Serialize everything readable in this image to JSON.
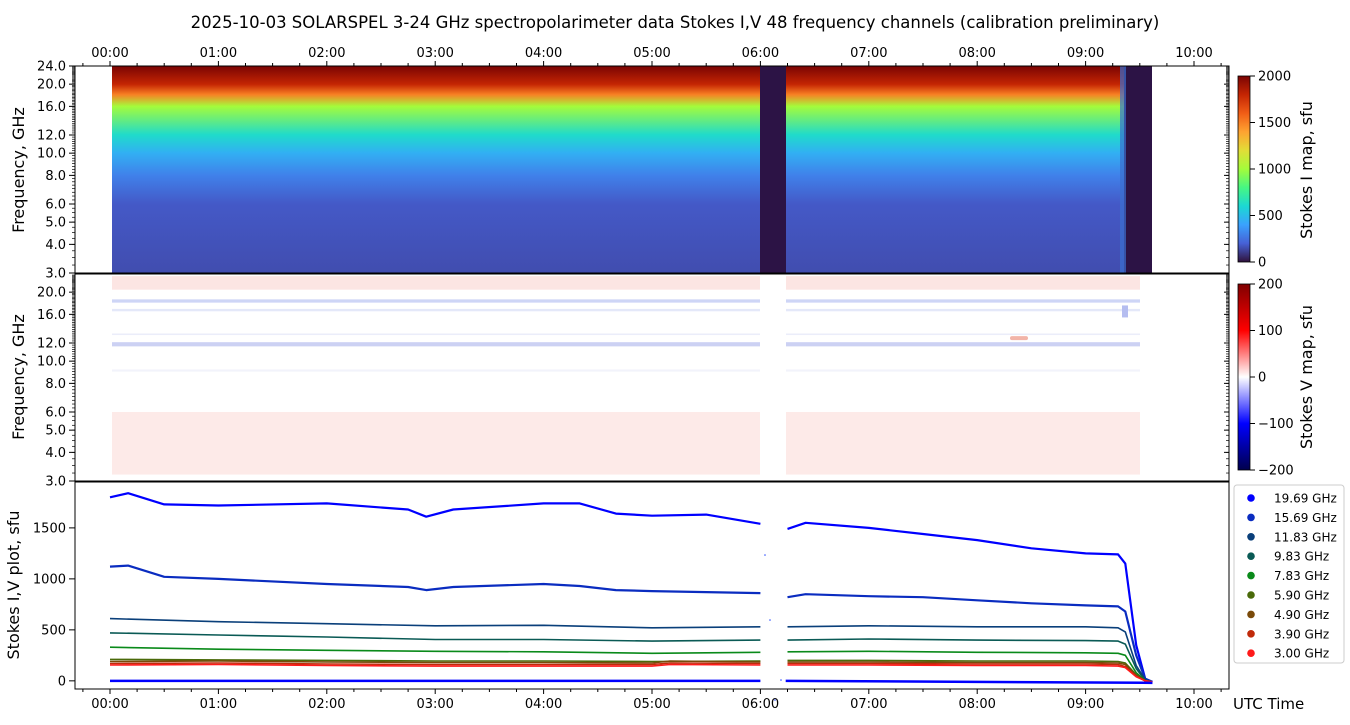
{
  "title": "2025-10-03  SOLARSPEL  3-24 GHz spectropolarimeter data   Stokes I,V   48 frequency channels   (calibration preliminary)",
  "time_ticks": [
    "00:00",
    "01:00",
    "02:00",
    "03:00",
    "04:00",
    "05:00",
    "06:00",
    "07:00",
    "08:00",
    "09:00",
    "10:00"
  ],
  "x_label": "UTC Time",
  "panel_i": {
    "ylabel": "Frequency, GHz",
    "freq_ticks": [
      "3.0",
      "4.0",
      "5.0",
      "6.0",
      "8.0",
      "10.0",
      "12.0",
      "16.0",
      "20.0",
      "24.0"
    ],
    "colorbar_label": "Stokes I map, sfu",
    "colorbar_ticks": [
      "0",
      "500",
      "1000",
      "1500",
      "2000"
    ]
  },
  "panel_v": {
    "ylabel": "Frequency, GHz",
    "freq_ticks": [
      "3.0",
      "4.0",
      "5.0",
      "6.0",
      "8.0",
      "10.0",
      "12.0",
      "16.0",
      "20.0"
    ],
    "colorbar_label": "Stokes V map, sfu",
    "colorbar_ticks": [
      "−200",
      "−100",
      "0",
      "100",
      "200"
    ]
  },
  "panel_plot": {
    "ylabel": "Stokes I,V plot, sfu",
    "y_ticks": [
      "0",
      "500",
      "1000",
      "1500"
    ]
  },
  "legend": [
    {
      "label": "19.69 GHz",
      "color": "#0000ff"
    },
    {
      "label": "15.69 GHz",
      "color": "#0a2cc0"
    },
    {
      "label": "11.83 GHz",
      "color": "#0a3f7a"
    },
    {
      "label": "9.83 GHz",
      "color": "#0a5a55"
    },
    {
      "label": "7.83 GHz",
      "color": "#0a8a1a"
    },
    {
      "label": "5.90 GHz",
      "color": "#4a6a0a"
    },
    {
      "label": "4.90 GHz",
      "color": "#7a4a0a"
    },
    {
      "label": "3.90 GHz",
      "color": "#c02a0a"
    },
    {
      "label": "3.00 GHz",
      "color": "#ff1a1a"
    }
  ],
  "chart_data": [
    {
      "type": "heatmap",
      "name": "Stokes I map",
      "x_range": [
        "00:00",
        "10:00"
      ],
      "data_time_range": [
        "00:00",
        "09:35"
      ],
      "y_range_ghz": [
        3.0,
        24.0
      ],
      "y_scale": "log",
      "z_range": [
        0,
        2000
      ],
      "colormap": "turbo",
      "gaps": [
        [
          "06:00",
          "06:14"
        ],
        [
          "09:20",
          "09:35"
        ]
      ],
      "spectrum_profile_sfu": [
        {
          "freq_ghz": 3.0,
          "value": 150
        },
        {
          "freq_ghz": 6.0,
          "value": 180
        },
        {
          "freq_ghz": 8.0,
          "value": 300
        },
        {
          "freq_ghz": 10.0,
          "value": 450
        },
        {
          "freq_ghz": 12.0,
          "value": 620
        },
        {
          "freq_ghz": 16.0,
          "value": 1000
        },
        {
          "freq_ghz": 18.0,
          "value": 1500
        },
        {
          "freq_ghz": 20.0,
          "value": 1800
        },
        {
          "freq_ghz": 24.0,
          "value": 2000
        }
      ]
    },
    {
      "type": "heatmap",
      "name": "Stokes V map",
      "x_range": [
        "00:00",
        "10:00"
      ],
      "y_range_ghz": [
        3.0,
        24.0
      ],
      "y_scale": "log",
      "z_range": [
        -200,
        200
      ],
      "colormap": "seismic",
      "near_zero": true
    },
    {
      "type": "scatter",
      "name": "Stokes I,V plot",
      "x_range": [
        "00:00",
        "10:00"
      ],
      "ylim": [
        -80,
        1950
      ],
      "gap": [
        "06:00",
        "06:14"
      ],
      "series": [
        {
          "name": "19.69 GHz",
          "points": [
            [
              "00:00",
              1800
            ],
            [
              "00:10",
              1840
            ],
            [
              "00:30",
              1730
            ],
            [
              "01:00",
              1720
            ],
            [
              "02:00",
              1740
            ],
            [
              "02:45",
              1680
            ],
            [
              "02:55",
              1610
            ],
            [
              "03:10",
              1680
            ],
            [
              "04:00",
              1740
            ],
            [
              "04:20",
              1740
            ],
            [
              "04:40",
              1640
            ],
            [
              "05:00",
              1620
            ],
            [
              "05:30",
              1630
            ],
            [
              "06:00",
              1540
            ],
            [
              "06:15",
              1490
            ],
            [
              "06:25",
              1550
            ],
            [
              "07:00",
              1500
            ],
            [
              "07:30",
              1440
            ],
            [
              "08:00",
              1380
            ],
            [
              "08:30",
              1300
            ],
            [
              "09:00",
              1250
            ],
            [
              "09:18",
              1240
            ],
            [
              "09:22",
              1150
            ],
            [
              "09:28",
              350
            ],
            [
              "09:33",
              20
            ],
            [
              "09:37",
              -10
            ]
          ]
        },
        {
          "name": "15.69 GHz",
          "points": [
            [
              "00:00",
              1120
            ],
            [
              "00:10",
              1130
            ],
            [
              "00:30",
              1020
            ],
            [
              "01:00",
              1000
            ],
            [
              "02:00",
              950
            ],
            [
              "02:45",
              920
            ],
            [
              "02:55",
              890
            ],
            [
              "03:10",
              920
            ],
            [
              "04:00",
              950
            ],
            [
              "04:20",
              930
            ],
            [
              "04:40",
              890
            ],
            [
              "05:00",
              880
            ],
            [
              "06:00",
              860
            ],
            [
              "06:15",
              820
            ],
            [
              "06:25",
              850
            ],
            [
              "07:00",
              830
            ],
            [
              "07:30",
              820
            ],
            [
              "08:00",
              790
            ],
            [
              "08:30",
              760
            ],
            [
              "09:00",
              740
            ],
            [
              "09:18",
              730
            ],
            [
              "09:22",
              680
            ],
            [
              "09:28",
              250
            ],
            [
              "09:33",
              20
            ],
            [
              "09:37",
              -10
            ]
          ]
        },
        {
          "name": "11.83 GHz",
          "points": [
            [
              "00:00",
              610
            ],
            [
              "01:00",
              580
            ],
            [
              "02:00",
              560
            ],
            [
              "03:00",
              540
            ],
            [
              "04:00",
              545
            ],
            [
              "05:00",
              520
            ],
            [
              "06:00",
              530
            ],
            [
              "06:15",
              530
            ],
            [
              "07:00",
              540
            ],
            [
              "08:00",
              530
            ],
            [
              "09:00",
              530
            ],
            [
              "09:18",
              520
            ],
            [
              "09:22",
              480
            ],
            [
              "09:28",
              150
            ],
            [
              "09:33",
              10
            ],
            [
              "09:37",
              -10
            ]
          ]
        },
        {
          "name": "9.83 GHz",
          "points": [
            [
              "00:00",
              470
            ],
            [
              "01:00",
              450
            ],
            [
              "02:00",
              430
            ],
            [
              "03:00",
              405
            ],
            [
              "04:00",
              405
            ],
            [
              "05:00",
              390
            ],
            [
              "06:00",
              400
            ],
            [
              "06:15",
              400
            ],
            [
              "07:00",
              410
            ],
            [
              "08:00",
              400
            ],
            [
              "09:00",
              395
            ],
            [
              "09:18",
              390
            ],
            [
              "09:22",
              360
            ],
            [
              "09:28",
              120
            ],
            [
              "09:33",
              5
            ],
            [
              "09:37",
              -10
            ]
          ]
        },
        {
          "name": "7.83 GHz",
          "points": [
            [
              "00:00",
              330
            ],
            [
              "01:00",
              310
            ],
            [
              "02:00",
              300
            ],
            [
              "03:00",
              290
            ],
            [
              "04:00",
              285
            ],
            [
              "05:00",
              270
            ],
            [
              "06:00",
              280
            ],
            [
              "06:15",
              285
            ],
            [
              "07:00",
              290
            ],
            [
              "08:00",
              280
            ],
            [
              "09:00",
              275
            ],
            [
              "09:18",
              270
            ],
            [
              "09:22",
              250
            ],
            [
              "09:28",
              80
            ],
            [
              "09:33",
              0
            ],
            [
              "09:37",
              -10
            ]
          ]
        },
        {
          "name": "5.90 GHz",
          "points": [
            [
              "00:00",
              210
            ],
            [
              "01:00",
              205
            ],
            [
              "02:00",
              200
            ],
            [
              "03:00",
              195
            ],
            [
              "04:00",
              195
            ],
            [
              "05:00",
              190
            ],
            [
              "06:00",
              195
            ],
            [
              "06:15",
              200
            ],
            [
              "07:00",
              200
            ],
            [
              "08:00",
              195
            ],
            [
              "09:00",
              195
            ],
            [
              "09:18",
              190
            ],
            [
              "09:22",
              175
            ],
            [
              "09:28",
              60
            ],
            [
              "09:33",
              0
            ],
            [
              "09:37",
              -10
            ]
          ]
        },
        {
          "name": "4.90 GHz",
          "points": [
            [
              "00:00",
              190
            ],
            [
              "01:00",
              195
            ],
            [
              "02:00",
              185
            ],
            [
              "03:00",
              180
            ],
            [
              "04:00",
              180
            ],
            [
              "05:00",
              175
            ],
            [
              "05:10",
              195
            ],
            [
              "06:00",
              185
            ],
            [
              "06:15",
              185
            ],
            [
              "07:00",
              185
            ],
            [
              "08:00",
              180
            ],
            [
              "09:00",
              180
            ],
            [
              "09:18",
              175
            ],
            [
              "09:22",
              160
            ],
            [
              "09:28",
              55
            ],
            [
              "09:33",
              0
            ],
            [
              "09:37",
              -10
            ]
          ]
        },
        {
          "name": "3.90 GHz",
          "points": [
            [
              "00:00",
              170
            ],
            [
              "01:00",
              175
            ],
            [
              "02:00",
              165
            ],
            [
              "03:00",
              160
            ],
            [
              "04:00",
              160
            ],
            [
              "05:00",
              160
            ],
            [
              "05:10",
              175
            ],
            [
              "06:00",
              170
            ],
            [
              "06:15",
              170
            ],
            [
              "07:00",
              170
            ],
            [
              "08:00",
              165
            ],
            [
              "09:00",
              165
            ],
            [
              "09:18",
              160
            ],
            [
              "09:22",
              140
            ],
            [
              "09:28",
              45
            ],
            [
              "09:33",
              0
            ],
            [
              "09:37",
              -10
            ]
          ]
        },
        {
          "name": "3.00 GHz",
          "points": [
            [
              "00:00",
              155
            ],
            [
              "01:00",
              160
            ],
            [
              "02:00",
              150
            ],
            [
              "03:00",
              145
            ],
            [
              "04:00",
              145
            ],
            [
              "05:00",
              145
            ],
            [
              "05:10",
              160
            ],
            [
              "06:00",
              155
            ],
            [
              "06:15",
              155
            ],
            [
              "07:00",
              155
            ],
            [
              "08:00",
              150
            ],
            [
              "09:00",
              150
            ],
            [
              "09:18",
              145
            ],
            [
              "09:22",
              130
            ],
            [
              "09:28",
              40
            ],
            [
              "09:33",
              0
            ],
            [
              "09:37",
              -10
            ]
          ]
        }
      ],
      "stokes_v_series_level_sfu": 0
    }
  ]
}
